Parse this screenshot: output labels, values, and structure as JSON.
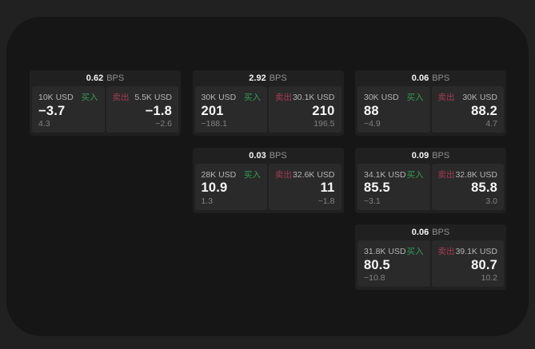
{
  "theme": {
    "backdrop_color": "#212121",
    "surface_color": "#161616",
    "card_color": "#202020",
    "panel_color": "#2a2a2a",
    "buy_green": "#2f9e52",
    "sell_red": "#a53a55",
    "value_white": "#f7f7f7",
    "muted_gray": "#828282"
  },
  "labels": {
    "buy": "买入",
    "sell": "卖出",
    "bps": "BPS"
  },
  "cards": [
    {
      "bps": "0.62",
      "buy": {
        "size": "10K USD",
        "value": "−3.7",
        "sub": "4.3"
      },
      "sell": {
        "size": "5.5K USD",
        "value": "−1.8",
        "sub": "−2.6"
      }
    },
    {
      "bps": "2.92",
      "buy": {
        "size": "30K USD",
        "value": "201",
        "sub": "−188.1"
      },
      "sell": {
        "size": "30.1K USD",
        "value": "210",
        "sub": "196.5"
      }
    },
    {
      "bps": "0.06",
      "buy": {
        "size": "30K USD",
        "value": "88",
        "sub": "−4.9"
      },
      "sell": {
        "size": "30K USD",
        "value": "88.2",
        "sub": "4.7"
      }
    },
    {
      "bps": "0.03",
      "buy": {
        "size": "28K USD",
        "value": "10.9",
        "sub": "1.3"
      },
      "sell": {
        "size": "32.6K USD",
        "value": "11",
        "sub": "−1.8"
      }
    },
    {
      "bps": "0.09",
      "buy": {
        "size": "34.1K USD",
        "value": "85.5",
        "sub": "−3.1"
      },
      "sell": {
        "size": "32.8K USD",
        "value": "85.8",
        "sub": "3.0"
      }
    },
    {
      "bps": "0.06",
      "buy": {
        "size": "31.8K USD",
        "value": "80.5",
        "sub": "−10.8"
      },
      "sell": {
        "size": "39.1K USD",
        "value": "80.7",
        "sub": "10.2"
      }
    }
  ]
}
